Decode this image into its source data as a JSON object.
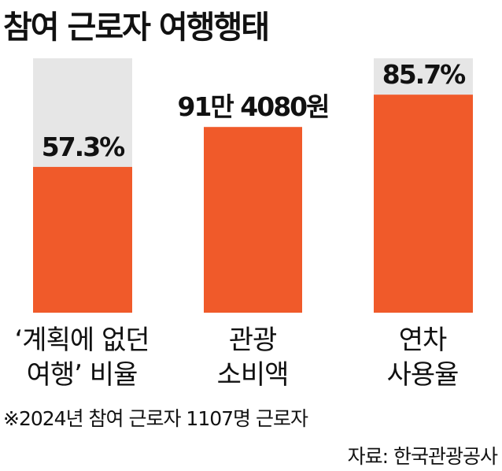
{
  "title": "참여 근로자 여행행태",
  "chart_data": {
    "type": "bar",
    "categories": [
      {
        "line1": "‘계획에 없던",
        "line2": "여행’ 비율"
      },
      {
        "line1": "관광",
        "line2": "소비액"
      },
      {
        "line1": "연차",
        "line2": "사용율"
      }
    ],
    "values": [
      57.3,
      null,
      85.7
    ],
    "value_labels": [
      "57.3%",
      "91만 4080원",
      "85.7%"
    ],
    "raw_values": [
      57.3,
      914080,
      85.7
    ],
    "units": [
      "%",
      "원",
      "%"
    ],
    "bar_fill_fraction": [
      0.573,
      0.73,
      0.857
    ],
    "ylim": [
      0,
      100
    ],
    "has_background": [
      true,
      false,
      true
    ],
    "colors": {
      "bar": "#f05a2a",
      "background": "#e6e6e6",
      "text": "#111111"
    }
  },
  "footnote": "※2024년 참여 근로자 1107명 근로자",
  "source": "자료: 한국관광공사"
}
